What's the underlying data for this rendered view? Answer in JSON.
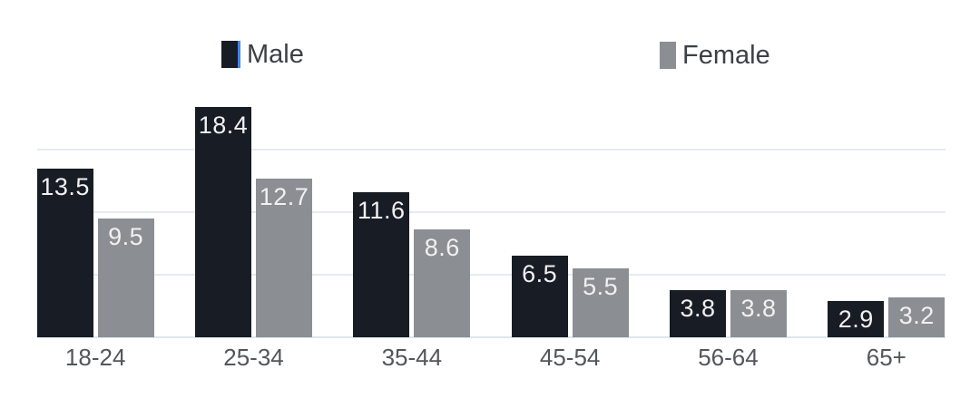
{
  "chart": {
    "legend_items": [
      {
        "label": "Male",
        "color": "#181c24",
        "caret": true
      },
      {
        "label": "Female",
        "color": "#8b8e93",
        "caret": false
      }
    ],
    "colors": {
      "male_bar": "#181c24",
      "female_bar": "#8b8e93",
      "gridline": "#e5ebf3",
      "baseline": "#dde5f0",
      "axis_label": "#53565b",
      "legend_text": "#3c4045",
      "value_label": "#f1f1f2",
      "caret": "#4285f4",
      "background": "#ffffff"
    }
  },
  "chart_data": {
    "type": "bar",
    "title": "",
    "xlabel": "",
    "ylabel": "",
    "categories": [
      "18-24",
      "25-34",
      "35-44",
      "45-54",
      "56-64",
      "65+"
    ],
    "series": [
      {
        "name": "Male",
        "color": "#181c24",
        "values": [
          13.5,
          18.4,
          11.6,
          6.5,
          3.8,
          2.9
        ]
      },
      {
        "name": "Female",
        "color": "#8b8e93",
        "values": [
          9.5,
          12.7,
          8.6,
          5.5,
          3.8,
          3.2
        ]
      }
    ],
    "value_labels": "inside-top",
    "legend_position": "top",
    "grid": true,
    "gridline_values": [
      5,
      10,
      15
    ],
    "ylim": [
      0,
      18.4
    ]
  }
}
